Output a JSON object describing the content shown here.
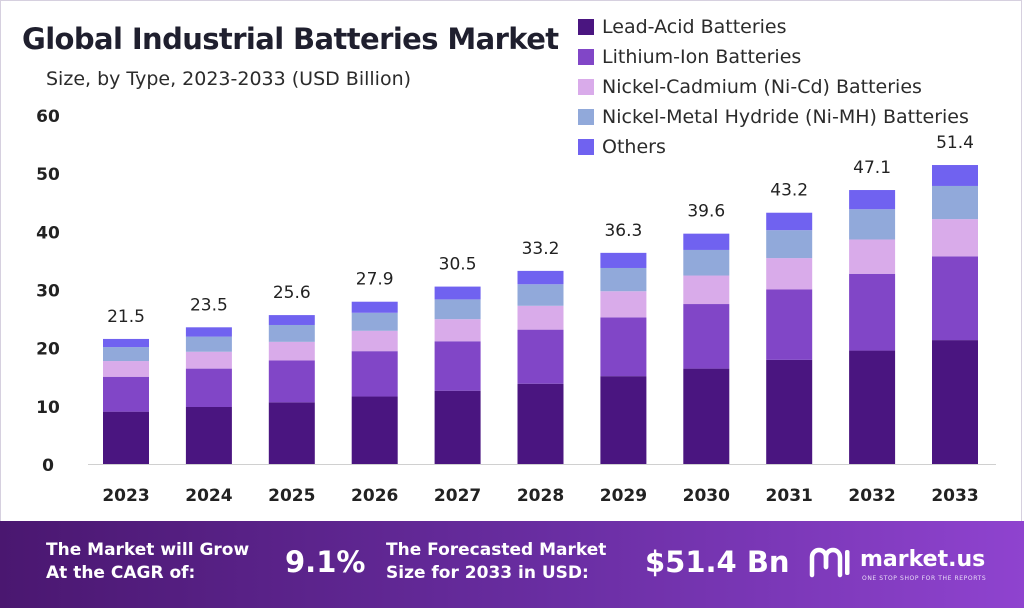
{
  "chart_data": {
    "type": "bar",
    "stacked": true,
    "title": "Global Industrial Batteries Market",
    "subtitle": "Size, by Type, 2023-2033 (USD Billion)",
    "xlabel": "",
    "ylabel": "",
    "ylim": [
      0,
      60
    ],
    "yticks": [
      0,
      10,
      20,
      30,
      40,
      50,
      60
    ],
    "grid": false,
    "legend_position": "top-right",
    "categories": [
      "2023",
      "2024",
      "2025",
      "2026",
      "2027",
      "2028",
      "2029",
      "2030",
      "2031",
      "2032",
      "2033"
    ],
    "totals": [
      21.5,
      23.5,
      25.6,
      27.9,
      30.5,
      33.2,
      36.3,
      39.6,
      43.2,
      47.1,
      51.4
    ],
    "total_labels": [
      "21.5",
      "23.5",
      "25.6",
      "27.9",
      "30.5",
      "33.2",
      "36.3",
      "39.6",
      "43.2",
      "47.1",
      "51.4"
    ],
    "series": [
      {
        "name": "Lead-Acid Batteries",
        "color": "#4a1580",
        "values": [
          9.0,
          9.8,
          10.6,
          11.6,
          12.6,
          13.8,
          15.1,
          16.4,
          17.9,
          19.5,
          21.3
        ]
      },
      {
        "name": "Lithium-Ion Batteries",
        "color": "#8146c7",
        "values": [
          6.0,
          6.6,
          7.2,
          7.8,
          8.5,
          9.3,
          10.1,
          11.1,
          12.1,
          13.2,
          14.4
        ]
      },
      {
        "name": "Nickel-Cadmium (Ni-Cd) Batteries",
        "color": "#d9abea",
        "values": [
          2.7,
          2.9,
          3.2,
          3.5,
          3.8,
          4.1,
          4.5,
          4.9,
          5.4,
          5.9,
          6.4
        ]
      },
      {
        "name": "Nickel-Metal Hydride (Ni-MH) Batteries",
        "color": "#91a9da",
        "values": [
          2.4,
          2.6,
          2.9,
          3.1,
          3.4,
          3.7,
          4.0,
          4.4,
          4.8,
          5.2,
          5.7
        ]
      },
      {
        "name": "Others",
        "color": "#7062f0",
        "values": [
          1.4,
          1.6,
          1.7,
          1.9,
          2.2,
          2.3,
          2.6,
          2.8,
          3.0,
          3.3,
          3.6
        ]
      }
    ],
    "axis_color": "#d0d0d0"
  },
  "footer": {
    "cagr_line1": "The Market will Grow",
    "cagr_line2": "At the CAGR of:",
    "cagr_value": "9.1%",
    "forecast_line1": "The Forecasted Market",
    "forecast_line2": "Size for 2033 in USD:",
    "forecast_value": "$51.4 Bn",
    "brand_name": "market.us",
    "brand_tagline": "ONE STOP SHOP FOR THE REPORTS",
    "brand_icon": "market-us-logo-icon"
  }
}
